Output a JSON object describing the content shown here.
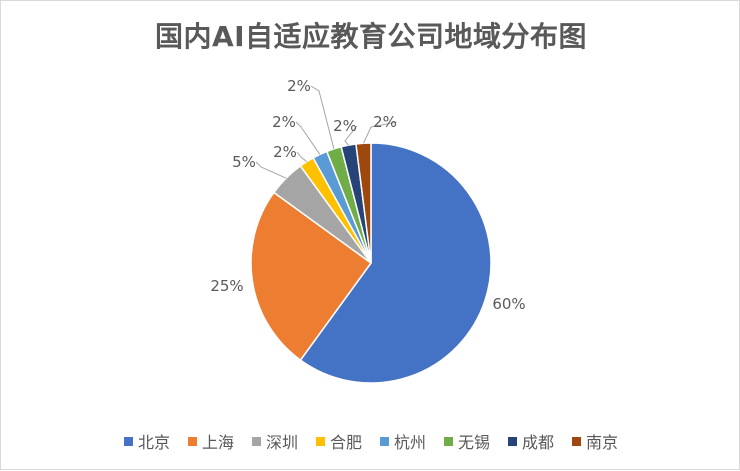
{
  "title": "国内AI自适应教育公司地域分布图",
  "chart_data": {
    "type": "pie",
    "title": "国内AI自适应教育公司地域分布图",
    "legend_position": "bottom",
    "slices": [
      {
        "label": "北京",
        "value": 60,
        "display": "60%",
        "color": "#4472C4"
      },
      {
        "label": "上海",
        "value": 25,
        "display": "25%",
        "color": "#ED7D31"
      },
      {
        "label": "深圳",
        "value": 5,
        "display": "5%",
        "color": "#A5A5A5"
      },
      {
        "label": "合肥",
        "value": 2,
        "display": "2%",
        "color": "#FFC000"
      },
      {
        "label": "杭州",
        "value": 2,
        "display": "2%",
        "color": "#5B9BD5"
      },
      {
        "label": "无锡",
        "value": 2,
        "display": "2%",
        "color": "#70AD47"
      },
      {
        "label": "成都",
        "value": 2,
        "display": "2%",
        "color": "#264478"
      },
      {
        "label": "南京",
        "value": 2,
        "display": "2%",
        "color": "#9E480E"
      }
    ]
  }
}
